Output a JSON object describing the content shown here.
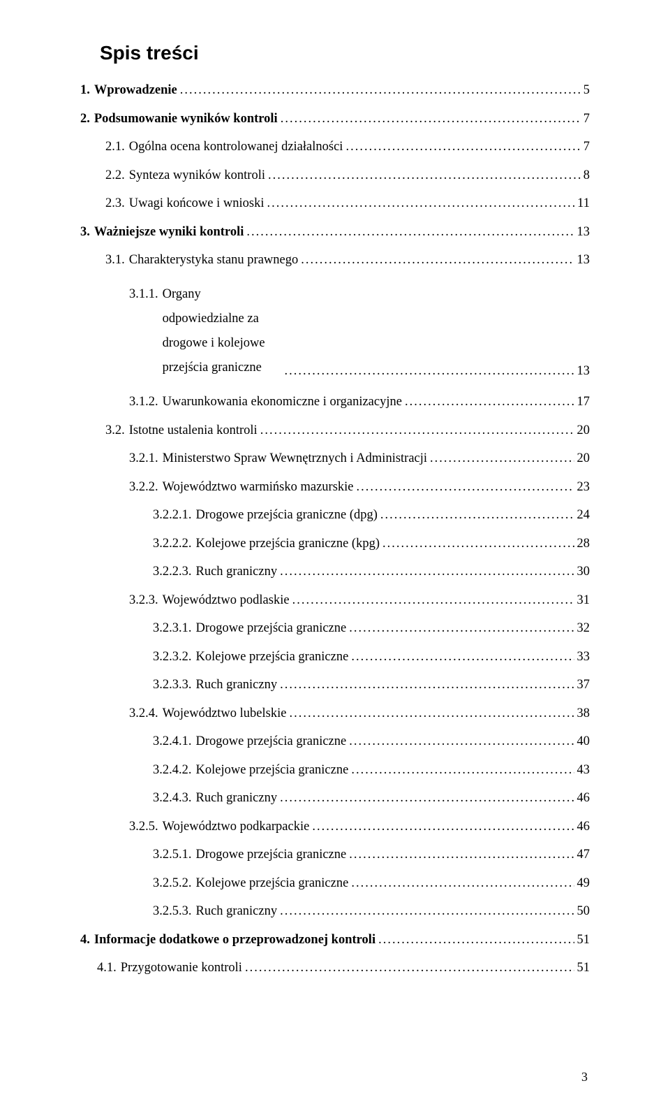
{
  "title": "Spis treści",
  "page_number": "3",
  "entries": [
    {
      "level": 0,
      "num": "1.",
      "text": "Wprowadzenie",
      "page": "5"
    },
    {
      "level": 0,
      "num": "2.",
      "text": "Podsumowanie wyników kontroli",
      "page": "7"
    },
    {
      "level": 1,
      "num": "2.1.",
      "text": "Ogólna ocena kontrolowanej działalności",
      "page": "7"
    },
    {
      "level": 1,
      "num": "2.2.",
      "text": "Synteza wyników kontroli",
      "page": "8"
    },
    {
      "level": 1,
      "num": "2.3.",
      "text": "Uwagi końcowe i wnioski",
      "page": "11"
    },
    {
      "level": 0,
      "num": "3.",
      "text": "Ważniejsze wyniki kontroli",
      "page": "13"
    },
    {
      "level": 1,
      "num": "3.1.",
      "text": "Charakterystyka stanu prawnego",
      "page": "13"
    },
    {
      "level": 2,
      "num": "3.1.1.",
      "text": "Organy odpowiedzialne za drogowe i kolejowe przejścia graniczne",
      "page": "13",
      "wrap": true
    },
    {
      "level": 2,
      "num": "3.1.2.",
      "text": "Uwarunkowania ekonomiczne i organizacyjne",
      "page": "17"
    },
    {
      "level": 1,
      "num": "3.2.",
      "text": "Istotne ustalenia kontroli",
      "page": "20"
    },
    {
      "level": 2,
      "num": "3.2.1.",
      "text": "Ministerstwo Spraw Wewnętrznych i Administracji",
      "page": "20"
    },
    {
      "level": 2,
      "num": "3.2.2.",
      "text": "Województwo warmińsko mazurskie",
      "page": "23"
    },
    {
      "level": 3,
      "num": "3.2.2.1.",
      "text": "Drogowe przejścia graniczne (dpg)",
      "page": "24"
    },
    {
      "level": 3,
      "num": "3.2.2.2.",
      "text": "Kolejowe przejścia graniczne (kpg)",
      "page": "28"
    },
    {
      "level": 3,
      "num": "3.2.2.3.",
      "text": "Ruch graniczny",
      "page": "30"
    },
    {
      "level": 2,
      "num": "3.2.3.",
      "text": "Województwo podlaskie",
      "page": "31"
    },
    {
      "level": 3,
      "num": "3.2.3.1.",
      "text": "Drogowe przejścia graniczne",
      "page": "32"
    },
    {
      "level": 3,
      "num": "3.2.3.2.",
      "text": "Kolejowe przejścia graniczne",
      "page": "33"
    },
    {
      "level": 3,
      "num": "3.2.3.3.",
      "text": "Ruch graniczny",
      "page": "37"
    },
    {
      "level": 2,
      "num": "3.2.4.",
      "text": "Województwo lubelskie",
      "page": "38"
    },
    {
      "level": 3,
      "num": "3.2.4.1.",
      "text": "Drogowe przejścia graniczne",
      "page": "40"
    },
    {
      "level": 3,
      "num": "3.2.4.2.",
      "text": "Kolejowe przejścia graniczne",
      "page": "43"
    },
    {
      "level": 3,
      "num": "3.2.4.3.",
      "text": "Ruch graniczny",
      "page": "46"
    },
    {
      "level": 2,
      "num": "3.2.5.",
      "text": "Województwo podkarpackie",
      "page": "46"
    },
    {
      "level": 3,
      "num": "3.2.5.1.",
      "text": "Drogowe przejścia graniczne",
      "page": "47"
    },
    {
      "level": 3,
      "num": "3.2.5.2.",
      "text": "Kolejowe przejścia graniczne",
      "page": "49"
    },
    {
      "level": 3,
      "num": "3.2.5.3.",
      "text": "Ruch graniczny",
      "page": "50"
    },
    {
      "level": 0,
      "num": "4.",
      "text": "Informacje dodatkowe o przeprowadzonej kontroli",
      "page": "51"
    },
    {
      "level": 4,
      "num": "4.1.",
      "text": "Przygotowanie kontroli",
      "page": "51"
    }
  ]
}
